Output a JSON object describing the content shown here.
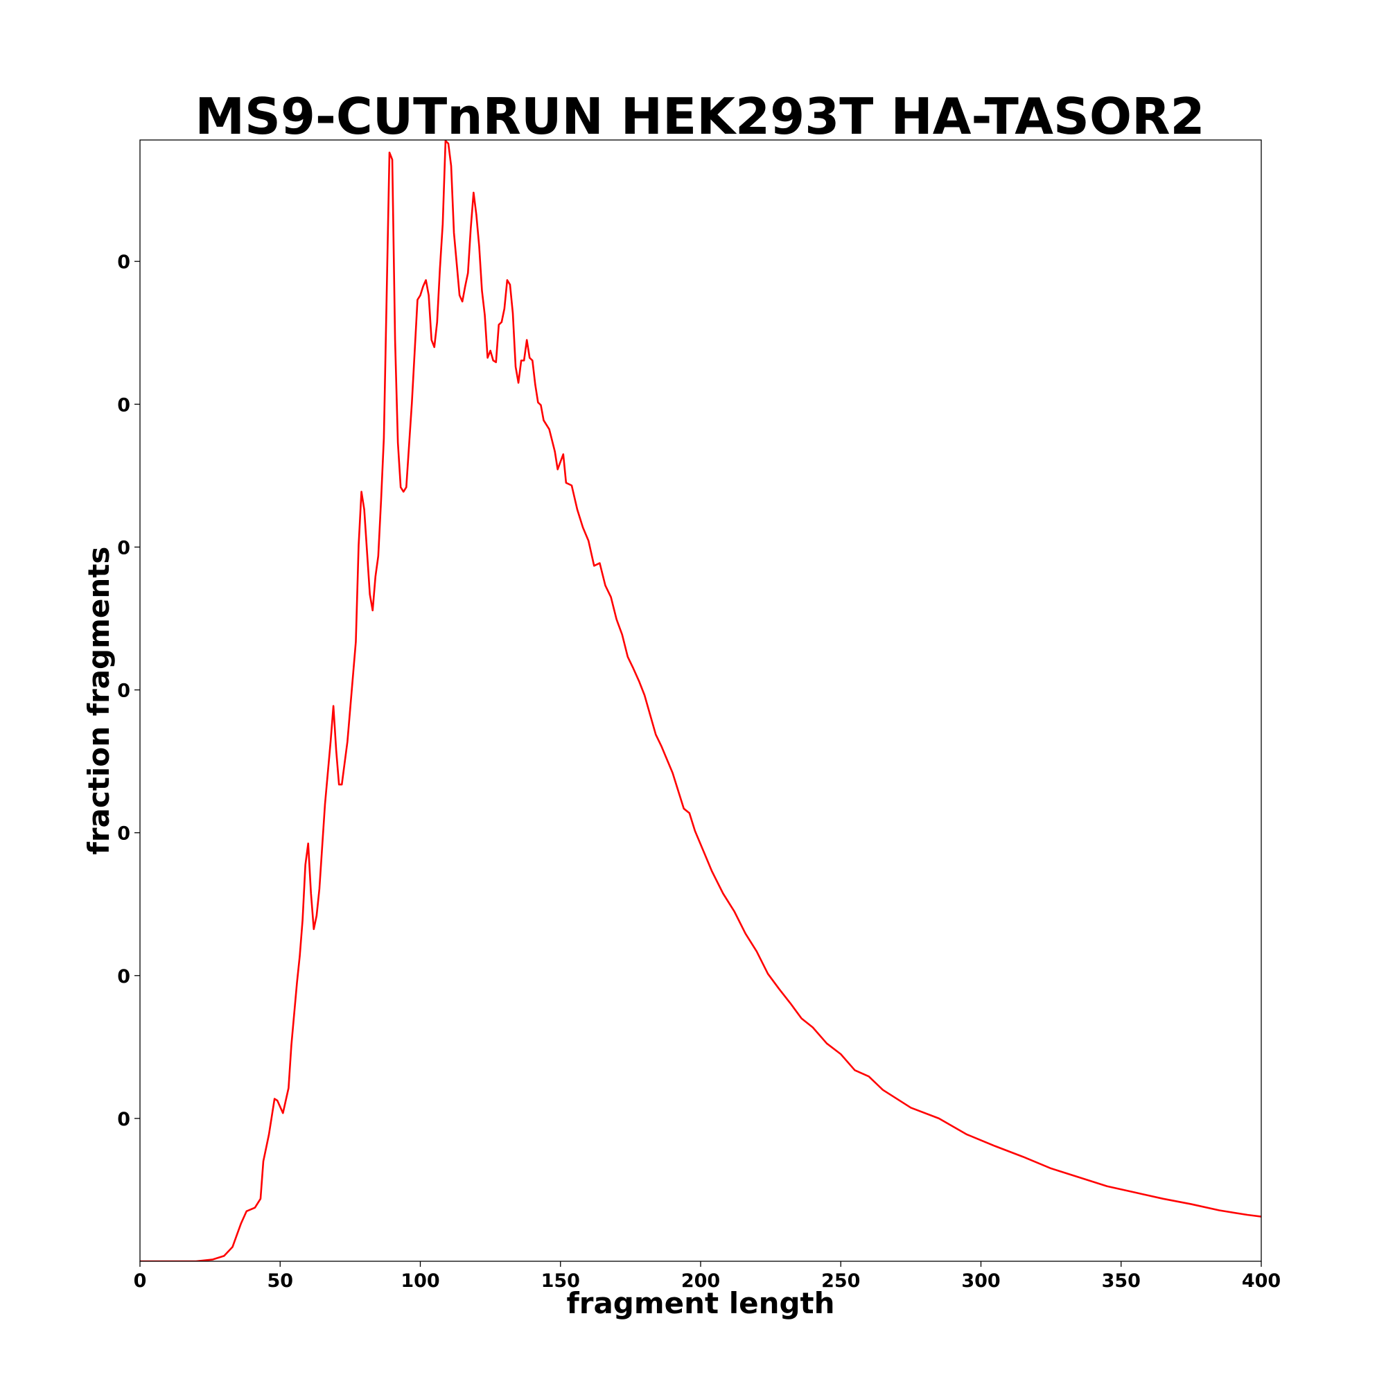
{
  "chart_data": {
    "type": "line",
    "title": "MS9-CUTnRUN HEK293T HA-TASOR2",
    "xlabel": "fragment length",
    "ylabel": "fraction fragments",
    "xlim": [
      0,
      400
    ],
    "xticks": [
      0,
      50,
      100,
      150,
      200,
      250,
      300,
      350,
      400
    ],
    "ylim": [
      0,
      0.0157
    ],
    "yticks": [
      {
        "value": 0.002,
        "label": "0"
      },
      {
        "value": 0.004,
        "label": "0"
      },
      {
        "value": 0.006,
        "label": "0"
      },
      {
        "value": 0.008,
        "label": "0"
      },
      {
        "value": 0.01,
        "label": "0"
      },
      {
        "value": 0.012,
        "label": "0"
      },
      {
        "value": 0.014,
        "label": "0"
      }
    ],
    "grid": false,
    "series": [
      {
        "name": "fraction fragments",
        "color": "#ff0000",
        "x": [
          0,
          20,
          26,
          30,
          33,
          36,
          38,
          41,
          43,
          44,
          46,
          48,
          49,
          51,
          53,
          54,
          56,
          57,
          58,
          59,
          60,
          61,
          62,
          63,
          64,
          66,
          68,
          69,
          70,
          71,
          72,
          74,
          77,
          78,
          79,
          80,
          82,
          83,
          84,
          85,
          86,
          87,
          89,
          90,
          91,
          92,
          93,
          94,
          95,
          97,
          99,
          100,
          101,
          102,
          103,
          104,
          105,
          106,
          107,
          108,
          109,
          110,
          111,
          112,
          114,
          115,
          116,
          117,
          118,
          119,
          120,
          121,
          122,
          123,
          124,
          125,
          126,
          127,
          128,
          129,
          130,
          131,
          132,
          133,
          134,
          135,
          136,
          137,
          138,
          139,
          140,
          141,
          142,
          143,
          144,
          146,
          148,
          149,
          151,
          152,
          154,
          156,
          158,
          160,
          162,
          164,
          166,
          168,
          170,
          172,
          174,
          176,
          178,
          180,
          182,
          184,
          186,
          188,
          190,
          192,
          194,
          196,
          198,
          200,
          204,
          208,
          212,
          216,
          220,
          224,
          228,
          232,
          236,
          240,
          245,
          250,
          255,
          260,
          265,
          275,
          285,
          295,
          305,
          315,
          325,
          335,
          345,
          355,
          365,
          375,
          385,
          395,
          400
        ],
        "values": [
          0,
          0,
          2.5e-05,
          7.5e-05,
          0.0002,
          0.000525,
          0.0007,
          0.00075,
          0.000875,
          0.0014,
          0.001775,
          0.002275,
          0.00225,
          0.002075,
          0.002425,
          0.003025,
          0.0039,
          0.004275,
          0.004775,
          0.00555,
          0.00585,
          0.00515,
          0.00465,
          0.004838,
          0.005213,
          0.0064,
          0.007275,
          0.007775,
          0.00715,
          0.006675,
          0.006675,
          0.007275,
          0.008675,
          0.010025,
          0.010775,
          0.010525,
          0.009338,
          0.009113,
          0.009588,
          0.009875,
          0.01065,
          0.011525,
          0.015525,
          0.015425,
          0.0129,
          0.011463,
          0.010838,
          0.010775,
          0.010838,
          0.012025,
          0.013463,
          0.013525,
          0.01365,
          0.013738,
          0.013525,
          0.0129,
          0.0128,
          0.01315,
          0.0139,
          0.014525,
          0.015688,
          0.01565,
          0.015338,
          0.0144,
          0.013525,
          0.013438,
          0.01365,
          0.013838,
          0.014463,
          0.014963,
          0.01465,
          0.014213,
          0.013588,
          0.01325,
          0.01265,
          0.01275,
          0.012613,
          0.012588,
          0.013113,
          0.01315,
          0.013338,
          0.013738,
          0.013675,
          0.013275,
          0.012525,
          0.0123,
          0.012613,
          0.012613,
          0.0129,
          0.01265,
          0.012613,
          0.012275,
          0.012025,
          0.011988,
          0.011775,
          0.01165,
          0.011338,
          0.011088,
          0.0113,
          0.0109,
          0.010863,
          0.010525,
          0.010275,
          0.010088,
          0.009738,
          0.009775,
          0.009463,
          0.0093,
          0.008988,
          0.008775,
          0.008463,
          0.0083,
          0.008125,
          0.007925,
          0.00765,
          0.007375,
          0.007213,
          0.007025,
          0.006838,
          0.006588,
          0.006338,
          0.006275,
          0.006025,
          0.005838,
          0.005463,
          0.00515,
          0.0049,
          0.004588,
          0.004338,
          0.004025,
          0.003813,
          0.003613,
          0.0034,
          0.003275,
          0.00305,
          0.0029,
          0.002675,
          0.002588,
          0.0024,
          0.00215,
          0.002,
          0.001775,
          0.001613,
          0.001463,
          0.0013,
          0.001175,
          0.00105,
          0.000963,
          0.000875,
          0.0008,
          0.000713,
          0.00065,
          0.000625
        ]
      }
    ]
  }
}
